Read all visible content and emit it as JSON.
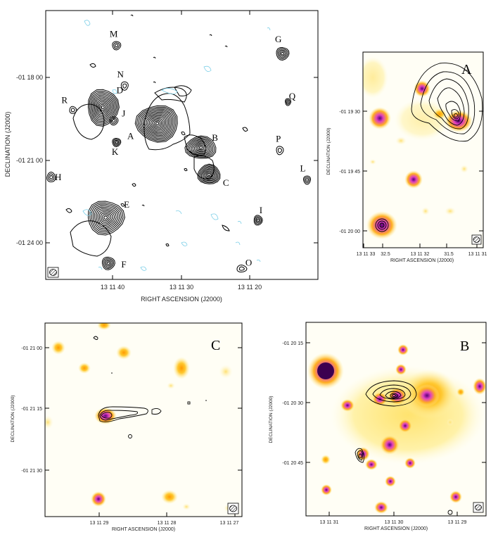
{
  "colors": {
    "contour": "#000000",
    "negative_contour": "#7fd0e8",
    "optical_faint": "#fff2a0",
    "optical_mid": "#ffcf3a",
    "optical_bright": "#e040c0",
    "optical_core": "#5a0078",
    "frame": "#000000"
  },
  "icons": {
    "beam": "hatched-beam-ellipse-icon"
  },
  "chart_data": [
    {
      "id": "main",
      "type": "scatter",
      "xlabel": "RIGHT ASCENSION  (J2000)",
      "ylabel": "DECLINATION  (J2000)",
      "x_ticks": [
        "13 11 40",
        "13 11 30",
        "13 11 20"
      ],
      "y_ticks": [
        "-01 18 00",
        "-01 21 00",
        "-01 24 00"
      ],
      "sources": [
        {
          "label": "A",
          "x": 0.41,
          "y": 0.42
        },
        {
          "label": "B",
          "x": 0.57,
          "y": 0.51
        },
        {
          "label": "C",
          "x": 0.6,
          "y": 0.61
        },
        {
          "label": "D",
          "x": 0.21,
          "y": 0.36
        },
        {
          "label": "E",
          "x": 0.22,
          "y": 0.77
        },
        {
          "label": "F",
          "x": 0.23,
          "y": 0.94
        },
        {
          "label": "G",
          "x": 0.87,
          "y": 0.16
        },
        {
          "label": "H",
          "x": 0.02,
          "y": 0.62
        },
        {
          "label": "I",
          "x": 0.78,
          "y": 0.78
        },
        {
          "label": "J",
          "x": 0.25,
          "y": 0.41
        },
        {
          "label": "K",
          "x": 0.26,
          "y": 0.49
        },
        {
          "label": "L",
          "x": 0.96,
          "y": 0.63
        },
        {
          "label": "M",
          "x": 0.26,
          "y": 0.13
        },
        {
          "label": "N",
          "x": 0.29,
          "y": 0.28
        },
        {
          "label": "O",
          "x": 0.72,
          "y": 0.96
        },
        {
          "label": "P",
          "x": 0.86,
          "y": 0.52
        },
        {
          "label": "Q",
          "x": 0.89,
          "y": 0.34
        },
        {
          "label": "R",
          "x": 0.1,
          "y": 0.37
        }
      ]
    },
    {
      "id": "A",
      "type": "scatter",
      "panel_label": "A",
      "xlabel": "RIGHT ASCENSION  (J2000)",
      "ylabel": "DECLINATION  (J2000)",
      "x_ticks": [
        "13 11 33",
        "32.5",
        "13 11 32",
        "31.5",
        "13 11 31"
      ],
      "y_ticks": [
        "-01 19 30",
        "-01 19 45",
        "-01 20 00"
      ]
    },
    {
      "id": "C",
      "type": "scatter",
      "panel_label": "C",
      "xlabel": "RIGHT ASCENSION  (J2000)",
      "ylabel": "DECLINATION  (J2000)",
      "x_ticks": [
        "13 11 29",
        "13 11 28",
        "13 11 27"
      ],
      "y_ticks": [
        "-01 21 00",
        "-01 21 15",
        "-01 21 30"
      ]
    },
    {
      "id": "B",
      "type": "scatter",
      "panel_label": "B",
      "xlabel": "RIGHT ASCENSION  (J2000)",
      "ylabel": "DECLINATION  (J2000)",
      "x_ticks": [
        "13 11 31",
        "13 11 30",
        "13 11 29"
      ],
      "y_ticks": [
        "-01 20 15",
        "-01 20 30",
        "-01 20 45"
      ]
    }
  ]
}
